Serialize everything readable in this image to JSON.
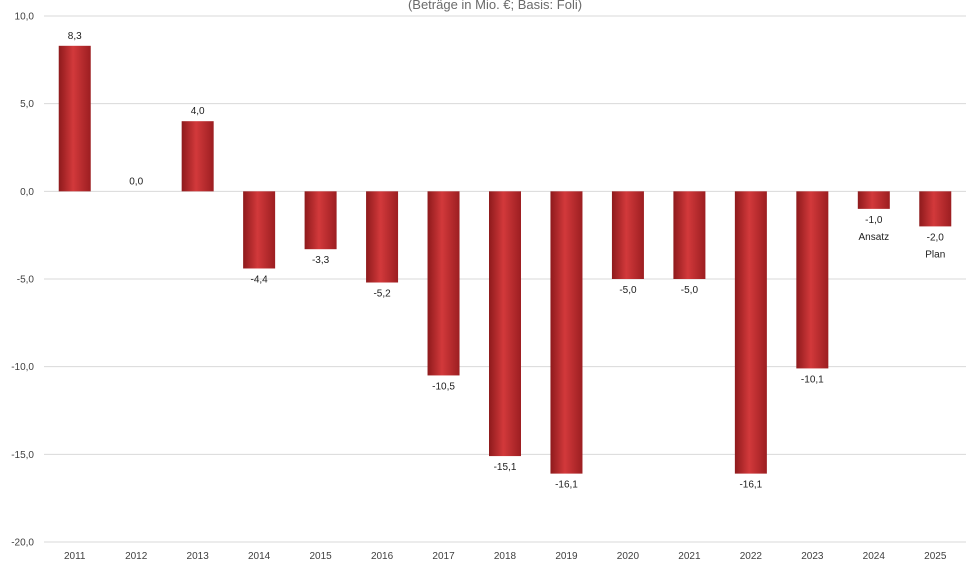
{
  "chart_data": {
    "type": "bar",
    "title": "",
    "subtitle": "(Beträge in Mio. €; Basis: Foli)",
    "xlabel": "",
    "ylabel": "",
    "ylim": [
      -20,
      10
    ],
    "y_ticks": [
      "10,0",
      "5,0",
      "0,0",
      "-5,0",
      "-10,0",
      "-15,0",
      "-20,0"
    ],
    "y_tick_values": [
      10,
      5,
      0,
      -5,
      -10,
      -15,
      -20
    ],
    "grid": true,
    "legend": "none",
    "categories": [
      "2011",
      "2012",
      "2013",
      "2014",
      "2015",
      "2016",
      "2017",
      "2018",
      "2019",
      "2020",
      "2021",
      "2022",
      "2023",
      "2024",
      "2025"
    ],
    "values": [
      8.3,
      0.0,
      4.0,
      -4.4,
      -3.3,
      -5.2,
      -10.5,
      -15.1,
      -16.1,
      -5.0,
      -5.0,
      -16.1,
      -10.1,
      -1.0,
      -2.0
    ],
    "data_labels": [
      "8,3",
      "0,0",
      "4,0",
      "-4,4",
      "-3,3",
      "-5,2",
      "-10,5",
      "-15,1",
      "-16,1",
      "-5,0",
      "-5,0",
      "-16,1",
      "-10,1",
      "-1,0",
      "-2,0"
    ],
    "annotations": [
      {
        "category": "2024",
        "text": "Ansatz"
      },
      {
        "category": "2025",
        "text": "Plan"
      }
    ],
    "bar_color": "#c0282c"
  }
}
